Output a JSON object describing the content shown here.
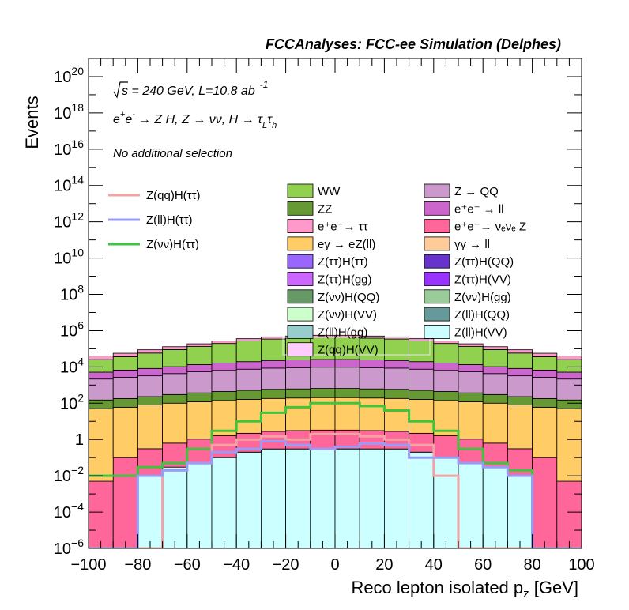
{
  "chart_data": {
    "type": "bar",
    "stacked": true,
    "title": "FCCAnalyses: FCC-ee Simulation (Delphes)",
    "xlabel": "Reco lepton isolated p",
    "xlabel_sub": "z",
    "xlabel_unit": " [GeV]",
    "ylabel": "Events",
    "yscale": "log",
    "xlim": [
      -100,
      100
    ],
    "ylim": [
      1e-06,
      1e+21
    ],
    "x_ticks": [
      "−100",
      "−80",
      "−60",
      "−40",
      "−20",
      "0",
      "20",
      "40",
      "60",
      "80",
      "100"
    ],
    "y_ticks": [
      {
        "base": "10",
        "exp": "−6"
      },
      {
        "base": "10",
        "exp": "−4"
      },
      {
        "base": "10",
        "exp": "−2"
      },
      {
        "base": "1",
        "exp": ""
      },
      {
        "base": "10",
        "exp": "2"
      },
      {
        "base": "10",
        "exp": "4"
      },
      {
        "base": "10",
        "exp": "6"
      },
      {
        "base": "10",
        "exp": "8"
      },
      {
        "base": "10",
        "exp": "10"
      },
      {
        "base": "10",
        "exp": "12"
      },
      {
        "base": "10",
        "exp": "14"
      },
      {
        "base": "10",
        "exp": "16"
      },
      {
        "base": "10",
        "exp": "18"
      },
      {
        "base": "10",
        "exp": "20"
      }
    ],
    "annotations": {
      "sqrt_s": "s = 240 GeV, L=10.8 ab",
      "lumi_exp": "-1",
      "process_a": "e",
      "process_b": "e",
      "process_c": "→ Z H, Z → νν, H → τ",
      "process_sub_l": "L",
      "process_tau": "τ",
      "process_sub_h": "h",
      "selection": "No additional selection"
    },
    "signal_legend": [
      {
        "label": "Z(qq)H(ττ)",
        "color": "#f2a3a3"
      },
      {
        "label": "Z(ll)H(ττ)",
        "color": "#9a9bf7"
      },
      {
        "label": "Z(νν)H(ττ)",
        "color": "#3fc43f"
      }
    ],
    "background_legend": [
      {
        "label": "WW",
        "color": "#92d050"
      },
      {
        "label": "Z → QQ",
        "color": "#cc99cc"
      },
      {
        "label": "ZZ",
        "color": "#669933"
      },
      {
        "label": "e⁺e⁻ → ll",
        "color": "#cc66cc"
      },
      {
        "label": "e⁺e⁻→ ττ",
        "color": "#ff99cc"
      },
      {
        "label": "e⁺e⁻→ νₑνₑ Z",
        "color": "#ff6699"
      },
      {
        "label": "eγ → eZ(ll)",
        "color": "#ffcc66"
      },
      {
        "label": "γγ → ll",
        "color": "#ffcc99"
      },
      {
        "label": "Z(ττ)H(ττ)",
        "color": "#9966ff"
      },
      {
        "label": "Z(ττ)H(QQ)",
        "color": "#6633cc"
      },
      {
        "label": "Z(ττ)H(gg)",
        "color": "#cc66ff"
      },
      {
        "label": "Z(ττ)H(VV)",
        "color": "#9933ff"
      },
      {
        "label": "Z(νν)H(QQ)",
        "color": "#669966"
      },
      {
        "label": "Z(νν)H(gg)",
        "color": "#99cc99"
      },
      {
        "label": "Z(νν)H(VV)",
        "color": "#ccffcc"
      },
      {
        "label": "Z(ll)H(QQ)",
        "color": "#669999"
      },
      {
        "label": "Z(ll)H(gg)",
        "color": "#99cccc"
      },
      {
        "label": "Z(ll)H(VV)",
        "color": "#ccffff"
      },
      {
        "label": "Z(qq)H(VV)",
        "color": "#ffccff"
      }
    ],
    "bin_centers": [
      -95,
      -85,
      -75,
      -65,
      -55,
      -45,
      -35,
      -25,
      -15,
      -5,
      5,
      15,
      25,
      35,
      45,
      55,
      65,
      75,
      85,
      95
    ],
    "series": [
      {
        "name": "Z(ll)H(VV)",
        "color": "#ccffff",
        "values": [
          0,
          0,
          0.01,
          0.03,
          0.05,
          0.1,
          0.2,
          0.3,
          0.3,
          0.3,
          0.3,
          0.3,
          0.3,
          0.2,
          0.1,
          0.05,
          0.03,
          0.01,
          0,
          0
        ]
      },
      {
        "name": "Z(ττ)H(QQ)",
        "color": "#6633cc",
        "values": [
          0,
          0,
          0,
          0,
          0.0001,
          0.0003,
          0.001,
          0.002,
          0.003,
          0.003,
          0.003,
          0.003,
          0.002,
          0.001,
          0.0003,
          0.0001,
          0,
          0,
          0,
          0
        ]
      },
      {
        "name": "e⁺e⁻→ νₑνₑ Z",
        "color": "#ff6699",
        "values": [
          0.005,
          0.1,
          0.3,
          0.6,
          1,
          1.5,
          2,
          2.5,
          2.8,
          3,
          3,
          2.8,
          2.5,
          2,
          1.5,
          1,
          0.6,
          0.3,
          0.1,
          0.005
        ]
      },
      {
        "name": "eγ → eZ(ll)",
        "color": "#ffcc66",
        "values": [
          50,
          60,
          80,
          100,
          120,
          140,
          160,
          180,
          190,
          200,
          200,
          190,
          180,
          160,
          140,
          120,
          100,
          80,
          60,
          50
        ]
      },
      {
        "name": "ZZ",
        "color": "#669933",
        "values": [
          100,
          120,
          150,
          200,
          250,
          300,
          350,
          400,
          420,
          450,
          450,
          420,
          400,
          350,
          300,
          250,
          200,
          150,
          120,
          100
        ]
      },
      {
        "name": "Z → QQ",
        "color": "#cc99cc",
        "values": [
          2000,
          2500,
          3000,
          4000,
          5000,
          6000,
          7000,
          8000,
          8500,
          9000,
          9000,
          8500,
          8000,
          7000,
          6000,
          5000,
          4000,
          3000,
          2500,
          2000
        ]
      },
      {
        "name": "e⁺e⁻ → ll",
        "color": "#cc66cc",
        "values": [
          3000,
          4000,
          5000,
          6000,
          8000,
          10000,
          12000,
          14000,
          15000,
          16000,
          16000,
          15000,
          14000,
          12000,
          10000,
          8000,
          6000,
          5000,
          4000,
          3000
        ]
      },
      {
        "name": "WW",
        "color": "#92d050",
        "values": [
          20000,
          30000,
          50000,
          80000,
          120000,
          180000,
          250000,
          320000,
          360000,
          400000,
          400000,
          360000,
          320000,
          250000,
          180000,
          120000,
          80000,
          50000,
          30000,
          20000
        ]
      },
      {
        "name": "e⁺e⁻→ ττ",
        "color": "#ff99cc",
        "values": [
          15000,
          20000,
          30000,
          40000,
          55000,
          70000,
          90000,
          110000,
          120000,
          130000,
          130000,
          120000,
          110000,
          90000,
          70000,
          55000,
          40000,
          30000,
          20000,
          15000
        ]
      }
    ],
    "signal_lines": [
      {
        "name": "Z(νν)H(ττ)",
        "color": "#3fc43f",
        "values": [
          0.01,
          0.01,
          0.03,
          0.05,
          0.3,
          3,
          10,
          30,
          60,
          100,
          100,
          70,
          40,
          10,
          3,
          0.3,
          0.05,
          0.02,
          1e-06,
          1e-06
        ]
      },
      {
        "name": "Z(qq)H(ττ)",
        "color": "#f2a3a3",
        "values": [
          1e-06,
          1e-06,
          1e-06,
          0.02,
          0.05,
          0.5,
          1,
          1.5,
          1,
          2,
          2,
          1.5,
          1,
          0.5,
          0.01,
          1e-06,
          1e-06,
          1e-06,
          1e-06,
          1e-06
        ]
      },
      {
        "name": "Z(ll)H(ττ)",
        "color": "#9a9bf7",
        "values": [
          1e-06,
          1e-06,
          0.01,
          0.02,
          0.05,
          0.2,
          0.3,
          0.8,
          0.5,
          0.3,
          0.4,
          0.6,
          0.5,
          0.1,
          0.1,
          0.05,
          0.03,
          0.01,
          1e-06,
          1e-06
        ]
      }
    ]
  }
}
